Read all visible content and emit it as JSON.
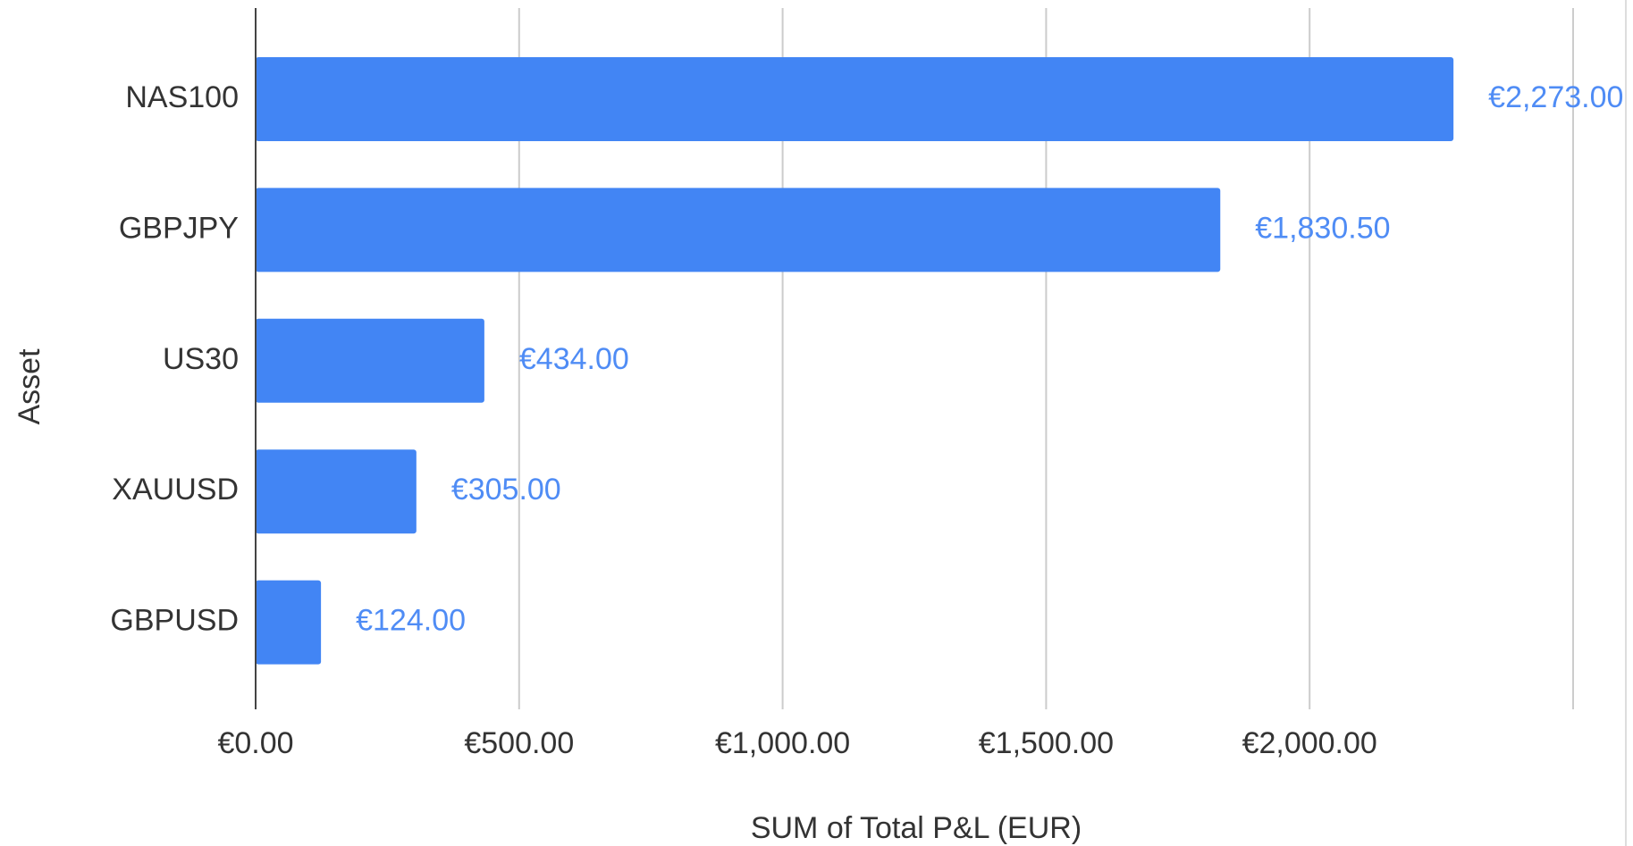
{
  "chart_data": {
    "type": "bar",
    "orientation": "horizontal",
    "categories": [
      "NAS100",
      "GBPJPY",
      "US30",
      "XAUUSD",
      "GBPUSD"
    ],
    "values": [
      2273,
      1830.5,
      434,
      305,
      124
    ],
    "value_labels": [
      "€2,273.00",
      "€1,830.50",
      "€434.00",
      "€305.00",
      "€124.00"
    ],
    "color": "#4285f4",
    "xlim": [
      0,
      2500
    ],
    "xticks": [
      {
        "value": 0,
        "label": "€0.00"
      },
      {
        "value": 500,
        "label": "€500.00"
      },
      {
        "value": 1000,
        "label": "€1,000.00"
      },
      {
        "value": 1500,
        "label": "€1,500.00"
      },
      {
        "value": 2000,
        "label": "€2,000.00"
      }
    ],
    "x_label": "SUM of Total P&L (EUR)",
    "y_label": "Asset",
    "grid": true
  }
}
